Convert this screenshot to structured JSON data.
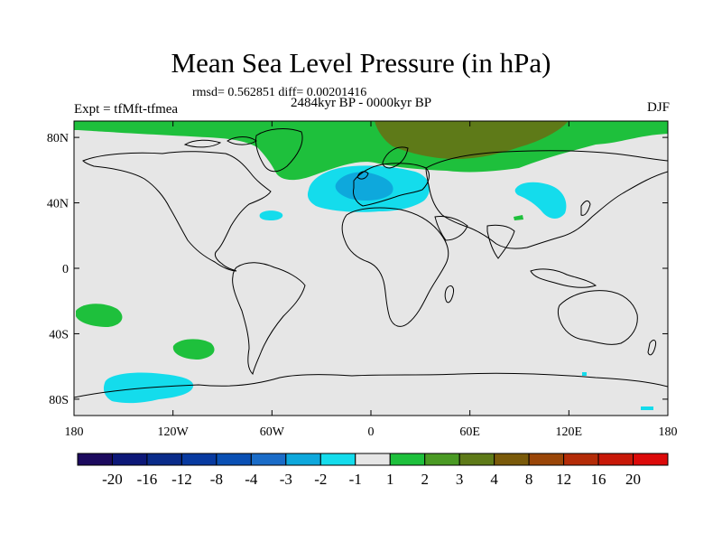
{
  "title": "Mean Sea Level Pressure (in hPa)",
  "stats": "rmsd= 0.562851 diff= 0.00201416",
  "period": "2484kyr BP - 0000kyr BP",
  "experiment": "Expt = tfMft-tfmea",
  "season": "DJF",
  "map": {
    "x_ticks": [
      "180",
      "120W",
      "60W",
      "0",
      "60E",
      "120E",
      "180"
    ],
    "y_ticks": [
      "80N",
      "40N",
      "0",
      "40S",
      "80S"
    ],
    "background_color": "#e6e6e6",
    "land_outline_color": "#000000"
  },
  "colorbar": {
    "labels": [
      "-20",
      "-16",
      "-12",
      "-8",
      "-4",
      "-3",
      "-2",
      "-1",
      "1",
      "2",
      "3",
      "4",
      "8",
      "12",
      "16",
      "20"
    ],
    "colors": [
      "#1c0a5e",
      "#0d1878",
      "#0a2c8a",
      "#083aa0",
      "#0a50b4",
      "#1a6cc8",
      "#0ea8dc",
      "#14dcec",
      "#e6e6e6",
      "#1ec03c",
      "#4a9a24",
      "#5e7a18",
      "#7a5a0a",
      "#9a4608",
      "#b42c08",
      "#c81808",
      "#dc0a0a"
    ]
  }
}
